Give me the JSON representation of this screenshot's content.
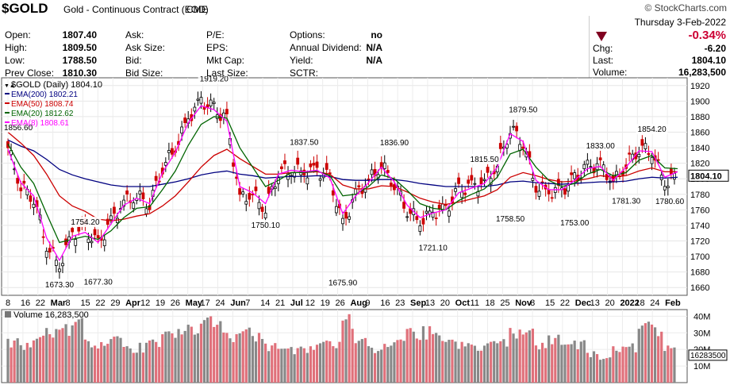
{
  "header": {
    "symbol": "$GOLD",
    "name": "Gold - Continuous Contract (EOD)",
    "exchange": "CME",
    "brand": "© StockCharts.com",
    "date": "Thursday   3-Feb-2022",
    "change_pct": "-0.34%",
    "chg_label": "Chg:",
    "chg_value": "-6.20",
    "last_label": "Last:",
    "last_value": "1804.10",
    "volume_label": "Volume:",
    "volume_value": "16,283,500",
    "down_color": "#800020",
    "stats_left": [
      {
        "label": "Open:",
        "value": "1807.40"
      },
      {
        "label": "High:",
        "value": "1809.50"
      },
      {
        "label": "Low:",
        "value": "1788.50"
      },
      {
        "label": "Prev Close:",
        "value": "1810.30"
      }
    ],
    "stats_mid": [
      {
        "label": "Ask:",
        "value": ""
      },
      {
        "label": "Ask Size:",
        "value": ""
      },
      {
        "label": "Bid:",
        "value": ""
      },
      {
        "label": "Bid Size:",
        "value": ""
      }
    ],
    "stats_mid2": [
      {
        "label": "P/E:",
        "value": ""
      },
      {
        "label": "EPS:",
        "value": ""
      },
      {
        "label": "Mkt Cap:",
        "value": ""
      },
      {
        "label": "Last Size:",
        "value": ""
      }
    ],
    "stats_right": [
      {
        "label": "Options:",
        "value": "no"
      },
      {
        "label": "Annual Dividend:",
        "value": "N/A"
      },
      {
        "label": "Yield:",
        "value": "N/A"
      },
      {
        "label": "SCTR:",
        "value": ""
      }
    ]
  },
  "chart_data": {
    "type": "line",
    "legend": [
      {
        "text": "$GOLD (Daily) 1804.10",
        "color": "#000000"
      },
      {
        "text": "EMA(200) 1802.21",
        "color": "#000080"
      },
      {
        "text": "EMA(50) 1808.74",
        "color": "#cc0000"
      },
      {
        "text": "EMA(20) 1812.62",
        "color": "#006400"
      },
      {
        "text": "EMA(8) 1808.61",
        "color": "#ff00ff"
      }
    ],
    "ylim": [
      1650,
      1930
    ],
    "yticks": [
      1660,
      1680,
      1700,
      1720,
      1740,
      1760,
      1780,
      1800,
      1820,
      1840,
      1860,
      1880,
      1900,
      1920
    ],
    "last_price_label": "1804.10",
    "x": [
      "2021-02-08",
      "2021-02-16",
      "2021-02-22",
      "2021-03-01",
      "2021-03-08",
      "2021-03-15",
      "2021-03-22",
      "2021-03-29",
      "2021-04-05",
      "2021-04-12",
      "2021-04-19",
      "2021-04-26",
      "2021-05-03",
      "2021-05-10",
      "2021-05-17",
      "2021-05-24",
      "2021-06-01",
      "2021-06-07",
      "2021-06-14",
      "2021-06-21",
      "2021-06-28",
      "2021-07-06",
      "2021-07-12",
      "2021-07-19",
      "2021-07-26",
      "2021-08-02",
      "2021-08-09",
      "2021-08-16",
      "2021-08-23",
      "2021-08-30",
      "2021-09-07",
      "2021-09-13",
      "2021-09-20",
      "2021-09-27",
      "2021-10-04",
      "2021-10-11",
      "2021-10-18",
      "2021-10-25",
      "2021-11-01",
      "2021-11-08",
      "2021-11-15",
      "2021-11-22",
      "2021-11-29",
      "2021-12-06",
      "2021-12-13",
      "2021-12-20",
      "2021-12-27",
      "2022-01-03",
      "2022-01-10",
      "2022-01-18",
      "2022-01-24",
      "2022-01-31",
      "2022-02-03"
    ],
    "series": [
      {
        "name": "$GOLD (Daily)",
        "values": [
          1840,
          1790,
          1776,
          1715,
          1688,
          1730,
          1734,
          1715,
          1745,
          1770,
          1778,
          1768,
          1815,
          1840,
          1878,
          1900,
          1890,
          1875,
          1775,
          1780,
          1762,
          1810,
          1812,
          1808,
          1812,
          1800,
          1740,
          1780,
          1798,
          1818,
          1794,
          1760,
          1745,
          1757,
          1760,
          1785,
          1790,
          1795,
          1818,
          1865,
          1848,
          1790,
          1783,
          1785,
          1800,
          1815,
          1818,
          1795,
          1818,
          1840,
          1836,
          1795,
          1804
        ]
      },
      {
        "name": "EMA(200)",
        "values": [
          1850,
          1842,
          1836,
          1825,
          1812,
          1805,
          1800,
          1796,
          1792,
          1790,
          1790,
          1790,
          1793,
          1796,
          1800,
          1805,
          1808,
          1810,
          1806,
          1804,
          1801,
          1802,
          1803,
          1803,
          1804,
          1803,
          1799,
          1798,
          1798,
          1799,
          1799,
          1797,
          1794,
          1792,
          1790,
          1790,
          1790,
          1790,
          1792,
          1796,
          1797,
          1795,
          1794,
          1793,
          1794,
          1795,
          1796,
          1796,
          1797,
          1800,
          1802,
          1801,
          1802
        ]
      },
      {
        "name": "EMA(50)",
        "values": [
          1860,
          1846,
          1830,
          1806,
          1778,
          1765,
          1758,
          1748,
          1746,
          1748,
          1752,
          1755,
          1765,
          1778,
          1796,
          1815,
          1830,
          1838,
          1826,
          1816,
          1806,
          1806,
          1808,
          1808,
          1809,
          1806,
          1792,
          1787,
          1787,
          1791,
          1790,
          1783,
          1775,
          1770,
          1767,
          1770,
          1774,
          1778,
          1786,
          1802,
          1808,
          1804,
          1799,
          1796,
          1797,
          1800,
          1804,
          1802,
          1804,
          1810,
          1814,
          1809,
          1809
        ]
      },
      {
        "name": "EMA(20)",
        "values": [
          1845,
          1815,
          1794,
          1755,
          1718,
          1722,
          1726,
          1722,
          1733,
          1750,
          1762,
          1764,
          1786,
          1810,
          1843,
          1870,
          1880,
          1878,
          1840,
          1815,
          1790,
          1798,
          1808,
          1808,
          1810,
          1804,
          1778,
          1780,
          1790,
          1805,
          1800,
          1785,
          1768,
          1762,
          1760,
          1772,
          1780,
          1787,
          1802,
          1832,
          1838,
          1815,
          1798,
          1790,
          1794,
          1806,
          1812,
          1804,
          1808,
          1824,
          1830,
          1814,
          1813
        ]
      },
      {
        "name": "EMA(8)",
        "values": [
          1838,
          1795,
          1778,
          1724,
          1695,
          1726,
          1731,
          1718,
          1742,
          1766,
          1775,
          1768,
          1808,
          1834,
          1872,
          1894,
          1889,
          1874,
          1790,
          1782,
          1768,
          1806,
          1811,
          1809,
          1811,
          1801,
          1755,
          1778,
          1795,
          1815,
          1796,
          1766,
          1750,
          1756,
          1760,
          1782,
          1788,
          1794,
          1815,
          1858,
          1848,
          1798,
          1786,
          1786,
          1798,
          1813,
          1816,
          1798,
          1815,
          1836,
          1835,
          1802,
          1809
        ]
      }
    ],
    "annotations": [
      {
        "label": "1856.60",
        "x": "2021-02-08",
        "y": 1856.6
      },
      {
        "label": "1673.30",
        "x": "2021-03-08",
        "y": 1673.3
      },
      {
        "label": "1754.20",
        "x": "2021-03-22",
        "y": 1754.2
      },
      {
        "label": "1677.30",
        "x": "2021-03-29",
        "y": 1677.3
      },
      {
        "label": "1919.20",
        "x": "2021-06-01",
        "y": 1919.2
      },
      {
        "label": "1750.10",
        "x": "2021-06-28",
        "y": 1750.1
      },
      {
        "label": "1837.50",
        "x": "2021-07-19",
        "y": 1837.5
      },
      {
        "label": "1675.90",
        "x": "2021-08-09",
        "y": 1675.9
      },
      {
        "label": "1836.90",
        "x": "2021-09-07",
        "y": 1836.9
      },
      {
        "label": "1721.10",
        "x": "2021-09-27",
        "y": 1721.1
      },
      {
        "label": "1815.50",
        "x": "2021-10-25",
        "y": 1815.5
      },
      {
        "label": "1758.50",
        "x": "2021-11-08",
        "y": 1758.5
      },
      {
        "label": "1879.50",
        "x": "2021-11-15",
        "y": 1879.5
      },
      {
        "label": "1753.00",
        "x": "2021-12-13",
        "y": 1753.0
      },
      {
        "label": "1833.00",
        "x": "2021-12-27",
        "y": 1833.0
      },
      {
        "label": "1781.30",
        "x": "2022-01-10",
        "y": 1781.3
      },
      {
        "label": "1854.20",
        "x": "2022-01-24",
        "y": 1854.2
      },
      {
        "label": "1780.60",
        "x": "2022-02-03",
        "y": 1780.6
      }
    ],
    "x_ticks": [
      {
        "label": "8",
        "bold": false
      },
      {
        "label": "16",
        "bold": false
      },
      {
        "label": "22",
        "bold": false
      },
      {
        "label": "Mar",
        "bold": true
      },
      {
        "label": "8",
        "bold": false
      },
      {
        "label": "15",
        "bold": false
      },
      {
        "label": "22",
        "bold": false
      },
      {
        "label": "29",
        "bold": false
      },
      {
        "label": "Apr",
        "bold": true
      },
      {
        "label": "12",
        "bold": false
      },
      {
        "label": "19",
        "bold": false
      },
      {
        "label": "26",
        "bold": false
      },
      {
        "label": "May",
        "bold": true
      },
      {
        "label": "17",
        "bold": false
      },
      {
        "label": "24",
        "bold": false
      },
      {
        "label": "Jun",
        "bold": true
      },
      {
        "label": "7",
        "bold": false
      },
      {
        "label": "14",
        "bold": false
      },
      {
        "label": "21",
        "bold": false
      },
      {
        "label": "Jul",
        "bold": true
      },
      {
        "label": "12",
        "bold": false
      },
      {
        "label": "19",
        "bold": false
      },
      {
        "label": "26",
        "bold": false
      },
      {
        "label": "Aug",
        "bold": true
      },
      {
        "label": "9",
        "bold": false
      },
      {
        "label": "16",
        "bold": false
      },
      {
        "label": "23",
        "bold": false
      },
      {
        "label": "Sep",
        "bold": true
      },
      {
        "label": "13",
        "bold": false
      },
      {
        "label": "20",
        "bold": false
      },
      {
        "label": "Oct",
        "bold": true
      },
      {
        "label": "11",
        "bold": false
      },
      {
        "label": "18",
        "bold": false
      },
      {
        "label": "25",
        "bold": false
      },
      {
        "label": "Nov",
        "bold": true
      },
      {
        "label": "8",
        "bold": false
      },
      {
        "label": "15",
        "bold": false
      },
      {
        "label": "22",
        "bold": false
      },
      {
        "label": "Dec",
        "bold": true
      },
      {
        "label": "13",
        "bold": false
      },
      {
        "label": "20",
        "bold": false
      },
      {
        "label": "2022",
        "bold": true
      },
      {
        "label": "18",
        "bold": false
      },
      {
        "label": "24",
        "bold": false
      },
      {
        "label": "Feb",
        "bold": true
      }
    ],
    "volume": {
      "legend": "Volume 16,283,500",
      "last_label": "16283500",
      "yticks": [
        {
          "label": "10M",
          "v": 10
        },
        {
          "label": "20M",
          "v": 20
        },
        {
          "label": "30M",
          "v": 30
        },
        {
          "label": "40M",
          "v": 40
        }
      ],
      "ylim": [
        0,
        44
      ],
      "up_color": "#888888",
      "down_color": "#e0707a",
      "values": [
        27,
        24,
        31,
        33,
        36,
        39,
        26,
        25,
        28,
        22,
        24,
        26,
        31,
        33,
        35,
        40,
        38,
        30,
        36,
        30,
        24,
        27,
        22,
        22,
        28,
        25,
        42,
        27,
        22,
        24,
        26,
        33,
        34,
        30,
        26,
        25,
        23,
        25,
        27,
        33,
        35,
        24,
        29,
        30,
        26,
        19,
        17,
        22,
        24,
        37,
        35,
        23,
        16
      ],
      "down": [
        1,
        0,
        1,
        1,
        1,
        0,
        0,
        1,
        0,
        0,
        0,
        1,
        0,
        0,
        0,
        0,
        1,
        1,
        1,
        0,
        1,
        0,
        0,
        1,
        0,
        1,
        1,
        0,
        0,
        0,
        1,
        1,
        1,
        0,
        0,
        0,
        0,
        0,
        0,
        0,
        1,
        1,
        1,
        0,
        0,
        0,
        0,
        1,
        0,
        0,
        1,
        1,
        1
      ]
    }
  }
}
